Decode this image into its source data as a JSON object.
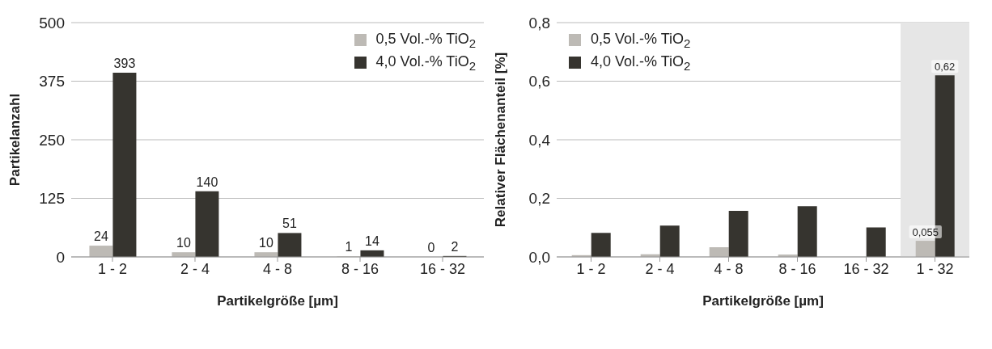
{
  "chart_data": [
    {
      "type": "bar",
      "ylabel": "Partikelanzahl",
      "xlabel": "Partikelgröße [µm]",
      "categories": [
        "1 - 2",
        "2 - 4",
        "4 - 8",
        "8 - 16",
        "16 - 32"
      ],
      "series": [
        {
          "name": "0,5 Vol.-% TiO$_{2}$",
          "color": "#bdbab5",
          "values": [
            24,
            10,
            10,
            1,
            0
          ]
        },
        {
          "name": "4,0 Vol.-% TiO$_{2}$",
          "color": "#36342f",
          "values": [
            393,
            140,
            51,
            14,
            2
          ]
        }
      ],
      "ylim": [
        0,
        500
      ],
      "yticks": [
        0,
        125,
        250,
        375,
        500
      ],
      "grid": "y",
      "legend": "top right",
      "data_labels": true
    },
    {
      "type": "bar",
      "ylabel": "Relativer Flächenanteil [%]",
      "xlabel": "Partikelgröße [µm]",
      "categories": [
        "1 - 2",
        "2 - 4",
        "4 - 8",
        "8 - 16",
        "16 - 32",
        "1 - 32"
      ],
      "series": [
        {
          "name": "0,5 Vol.-% TiO$_{2}$",
          "color": "#bdbab5",
          "values": [
            0.006,
            0.009,
            0.033,
            0.008,
            0,
            0.055
          ],
          "value_labels": [
            null,
            null,
            null,
            null,
            null,
            "0,055"
          ]
        },
        {
          "name": "4,0 Vol.-% TiO$_{2}$",
          "color": "#36342f",
          "values": [
            0.082,
            0.107,
            0.157,
            0.173,
            0.101,
            0.62
          ],
          "value_labels": [
            null,
            null,
            null,
            null,
            null,
            "0,62"
          ]
        }
      ],
      "ylim": [
        0,
        0.8
      ],
      "yticks": [
        {
          "value": 0,
          "label": "0,0"
        },
        {
          "value": 0.2,
          "label": "0,2"
        },
        {
          "value": 0.4,
          "label": "0,4"
        },
        {
          "value": 0.6,
          "label": "0,6"
        },
        {
          "value": 0.8,
          "label": "0,8"
        }
      ],
      "bands": [
        {
          "axis": "x",
          "from": "1 - 32",
          "to": "1 - 32",
          "color": "#e6e6e6"
        }
      ],
      "grid": "y",
      "legend": "top left"
    }
  ]
}
